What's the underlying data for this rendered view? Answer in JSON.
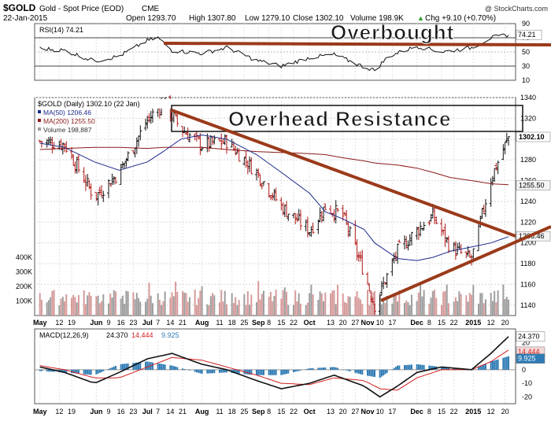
{
  "header": {
    "symbol": "$GOLD",
    "name": "Gold - Spot Price (EOD)",
    "exchange": "CME",
    "date": "22-Jan-2015",
    "open": "Open 1293.70",
    "high": "High 1307.80",
    "low": "Low 1279.10",
    "close": "Close 1302.10",
    "volume": "Volume 198.9K",
    "change": "Chg +9.10 (+0.70%)",
    "change_arrow": "▲",
    "copyright": "@ StockCharts.com"
  },
  "colors": {
    "price_up": "#111111",
    "price_down": "#b01818",
    "ma50": "#1c2a8a",
    "ma200": "#8b1a1a",
    "volume_up": "#9e9e9e",
    "volume_down": "#d69b9b",
    "annotation": "#9a3a1a",
    "macd_line": "#111111",
    "macd_signal": "#d42020",
    "histogram": "#2f7bb5",
    "rsi_fill": "#8b5050"
  },
  "annotations": {
    "overbought": "Overbought",
    "overhead_resistance": "Overhead Resistance"
  },
  "chart_data": [
    {
      "type": "line",
      "panel": "RSI",
      "label": "RSI(14) 74.21",
      "y_ticks": [
        90,
        70,
        50,
        30,
        10
      ],
      "ylim": [
        10,
        90
      ],
      "current_value": "74.21",
      "levels": [
        70,
        30
      ],
      "x": [
        "2014-05-01",
        "2014-05-15",
        "2014-06-01",
        "2014-06-15",
        "2014-07-01",
        "2014-07-07",
        "2014-07-15",
        "2014-08-01",
        "2014-08-15",
        "2014-09-01",
        "2014-09-15",
        "2014-10-01",
        "2014-10-15",
        "2014-11-01",
        "2014-11-07",
        "2014-11-15",
        "2014-12-01",
        "2014-12-15",
        "2015-01-01",
        "2015-01-12",
        "2015-01-22"
      ],
      "values": [
        55,
        52,
        37,
        44,
        66,
        70,
        52,
        48,
        56,
        38,
        30,
        42,
        46,
        29,
        24,
        44,
        58,
        50,
        56,
        70,
        74
      ]
    },
    {
      "type": "line",
      "panel": "price",
      "label": "$GOLD (Daily) 1302.10 (22 Jan)",
      "ylim": [
        1130,
        1340
      ],
      "y_ticks": [
        1340,
        1320,
        1300,
        1280,
        1260,
        1240,
        1220,
        1200,
        1180,
        1160,
        1140
      ],
      "current_label": "1302.10",
      "legend": [
        {
          "name": "MA(50) 1206.46",
          "color": "#1c2a8a"
        },
        {
          "name": "MA(200) 1255.50",
          "color": "#8b1a1a"
        },
        {
          "name": "Volume 198,887",
          "color": "#9e9e9e"
        }
      ],
      "right_tags": [
        {
          "text": "1302.10",
          "value": 1302.1
        },
        {
          "text": "1255.50",
          "value": 1255.5
        },
        {
          "text": "1206.46",
          "value": 1206.46
        }
      ],
      "x_labels": [
        "May",
        "12",
        "19",
        "Jun",
        "9",
        "16",
        "23",
        "Jul",
        "7",
        "14",
        "21",
        "Aug",
        "11",
        "18",
        "25",
        "Sep",
        "8",
        "15",
        "22",
        "Oct",
        "13",
        "20",
        "27",
        "Nov",
        "10",
        "17",
        "Dec",
        "8",
        "15",
        "22",
        "2015",
        "12",
        "20"
      ],
      "x": [
        "2014-05-01",
        "2014-05-15",
        "2014-06-01",
        "2014-06-15",
        "2014-07-01",
        "2014-07-10",
        "2014-07-20",
        "2014-08-01",
        "2014-08-15",
        "2014-09-01",
        "2014-09-15",
        "2014-10-01",
        "2014-10-10",
        "2014-10-20",
        "2014-11-01",
        "2014-11-07",
        "2014-11-20",
        "2014-12-01",
        "2014-12-10",
        "2014-12-20",
        "2015-01-01",
        "2015-01-12",
        "2015-01-22"
      ],
      "series": [
        {
          "name": "Close",
          "values": [
            1298,
            1295,
            1244,
            1268,
            1318,
            1336,
            1310,
            1294,
            1298,
            1268,
            1235,
            1212,
            1235,
            1226,
            1172,
            1140,
            1192,
            1212,
            1226,
            1196,
            1184,
            1262,
            1302
          ]
        },
        {
          "name": "MA(50)",
          "values": [
            1296,
            1292,
            1278,
            1270,
            1278,
            1288,
            1300,
            1304,
            1300,
            1285,
            1268,
            1248,
            1230,
            1223,
            1213,
            1200,
            1185,
            1183,
            1186,
            1192,
            1196,
            1200,
            1206
          ]
        },
        {
          "name": "MA(200)",
          "values": [
            1290,
            1291,
            1292,
            1292,
            1291,
            1292,
            1292,
            1292,
            1290,
            1288,
            1287,
            1286,
            1285,
            1282,
            1279,
            1277,
            1275,
            1272,
            1268,
            1263,
            1260,
            1257,
            1256
          ]
        }
      ]
    },
    {
      "type": "bar",
      "panel": "volume",
      "y_ticks": [
        "400K",
        "300K",
        "200K",
        "100K"
      ],
      "ylim": [
        0,
        450
      ]
    },
    {
      "type": "line",
      "panel": "MACD",
      "label": "MACD(12,26,9)",
      "values_text": [
        "24.370",
        "14.444",
        "9.925"
      ],
      "y_ticks": [
        20,
        10,
        0,
        -10,
        -20
      ],
      "ylim": [
        -25,
        30
      ],
      "x_labels": [
        "May",
        "12",
        "19",
        "Jun",
        "9",
        "16",
        "23",
        "Jul",
        "7",
        "14",
        "21",
        "Aug",
        "11",
        "18",
        "25",
        "Sep",
        "8",
        "15",
        "22",
        "Oct",
        "13",
        "20",
        "27",
        "Nov",
        "10",
        "17",
        "Dec",
        "8",
        "15",
        "22",
        "2015",
        "12",
        "20"
      ],
      "x": [
        "2014-05-01",
        "2014-05-15",
        "2014-06-01",
        "2014-06-15",
        "2014-07-01",
        "2014-07-15",
        "2014-08-01",
        "2014-08-15",
        "2014-09-01",
        "2014-09-15",
        "2014-10-01",
        "2014-10-15",
        "2014-11-01",
        "2014-11-10",
        "2014-11-20",
        "2014-12-01",
        "2014-12-15",
        "2015-01-01",
        "2015-01-12",
        "2015-01-22"
      ],
      "series": [
        {
          "name": "MACD",
          "values": [
            2,
            -2,
            -10,
            -2,
            8,
            12,
            4,
            0,
            -8,
            -14,
            -10,
            -4,
            -12,
            -20,
            -12,
            -2,
            2,
            0,
            12,
            24.37
          ]
        },
        {
          "name": "Signal",
          "values": [
            3,
            0,
            -6,
            -6,
            2,
            9,
            7,
            2,
            -4,
            -10,
            -11,
            -6,
            -8,
            -14,
            -15,
            -6,
            0,
            0,
            6,
            14.444
          ]
        },
        {
          "name": "Histogram",
          "values": [
            -1,
            -2,
            -4,
            4,
            6,
            3,
            -3,
            -2,
            -4,
            -4,
            1,
            2,
            -4,
            -6,
            3,
            4,
            2,
            0,
            6,
            9.925
          ]
        }
      ]
    }
  ]
}
